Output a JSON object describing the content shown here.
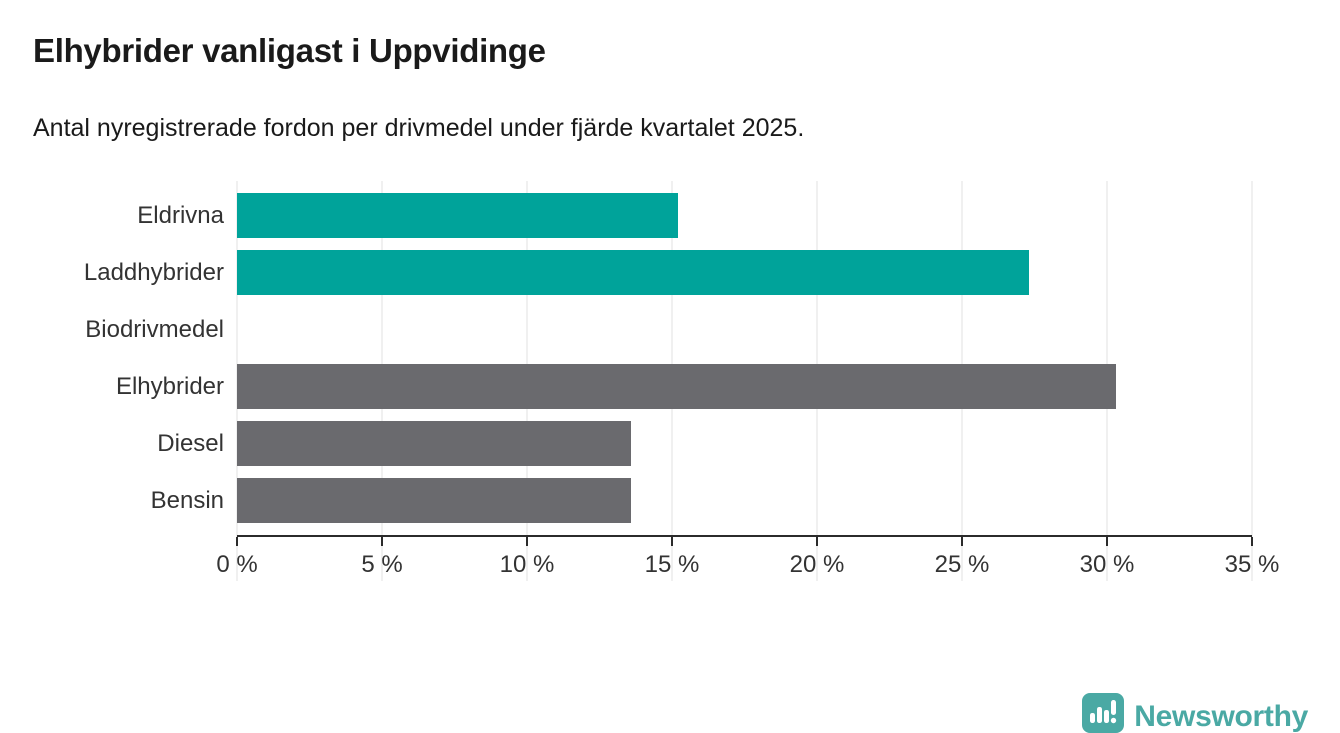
{
  "header": {
    "title": "Elhybrider vanligast i Uppvidinge",
    "subtitle": "Antal nyregistrerade fordon per drivmedel under fjärde kvartalet 2025."
  },
  "chart_data": {
    "type": "bar",
    "orientation": "horizontal",
    "title": "Elhybrider vanligast i Uppvidinge",
    "subtitle": "Antal nyregistrerade fordon per drivmedel under fjärde kvartalet 2025.",
    "categories": [
      "Eldrivna",
      "Laddhybrider",
      "Biodrivmedel",
      "Elhybrider",
      "Diesel",
      "Bensin"
    ],
    "values": [
      15.2,
      27.3,
      0,
      30.3,
      13.6,
      13.6
    ],
    "unit": "%",
    "xlim": [
      0,
      35
    ],
    "x_ticks": [
      0,
      5,
      10,
      15,
      20,
      25,
      30,
      35
    ],
    "x_tick_labels": [
      "0 %",
      "5 %",
      "10 %",
      "15 %",
      "20 %",
      "25 %",
      "30 %",
      "35 %"
    ],
    "grid": true,
    "legend": "none",
    "highlight_color": "#00a39a",
    "default_color": "#6a6a6e",
    "bar_colors": [
      "#00a39a",
      "#00a39a",
      "#6a6a6e",
      "#6a6a6e",
      "#6a6a6e",
      "#6a6a6e"
    ]
  },
  "branding": {
    "wordmark": "Newsworthy",
    "logo_icon": "newsworthy-speech-bubble-bar-chart-icon",
    "color": "#4aa9a4"
  },
  "colors": {
    "background": "#ffffff",
    "title_text": "#1a1a1a",
    "label_text": "#333333",
    "gridline": "#e0e0e0",
    "axis_line": "#2b2b2b"
  }
}
